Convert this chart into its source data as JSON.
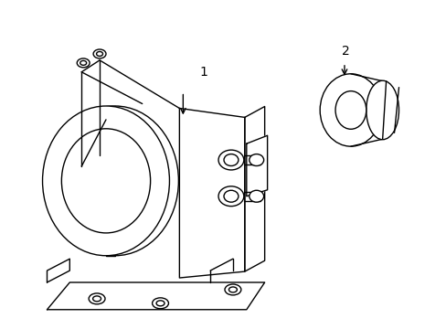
{
  "background_color": "#ffffff",
  "line_color": "#000000",
  "line_width": 1.0,
  "label1": "1",
  "label2": "2",
  "figsize": [
    4.89,
    3.6
  ],
  "dpi": 100
}
